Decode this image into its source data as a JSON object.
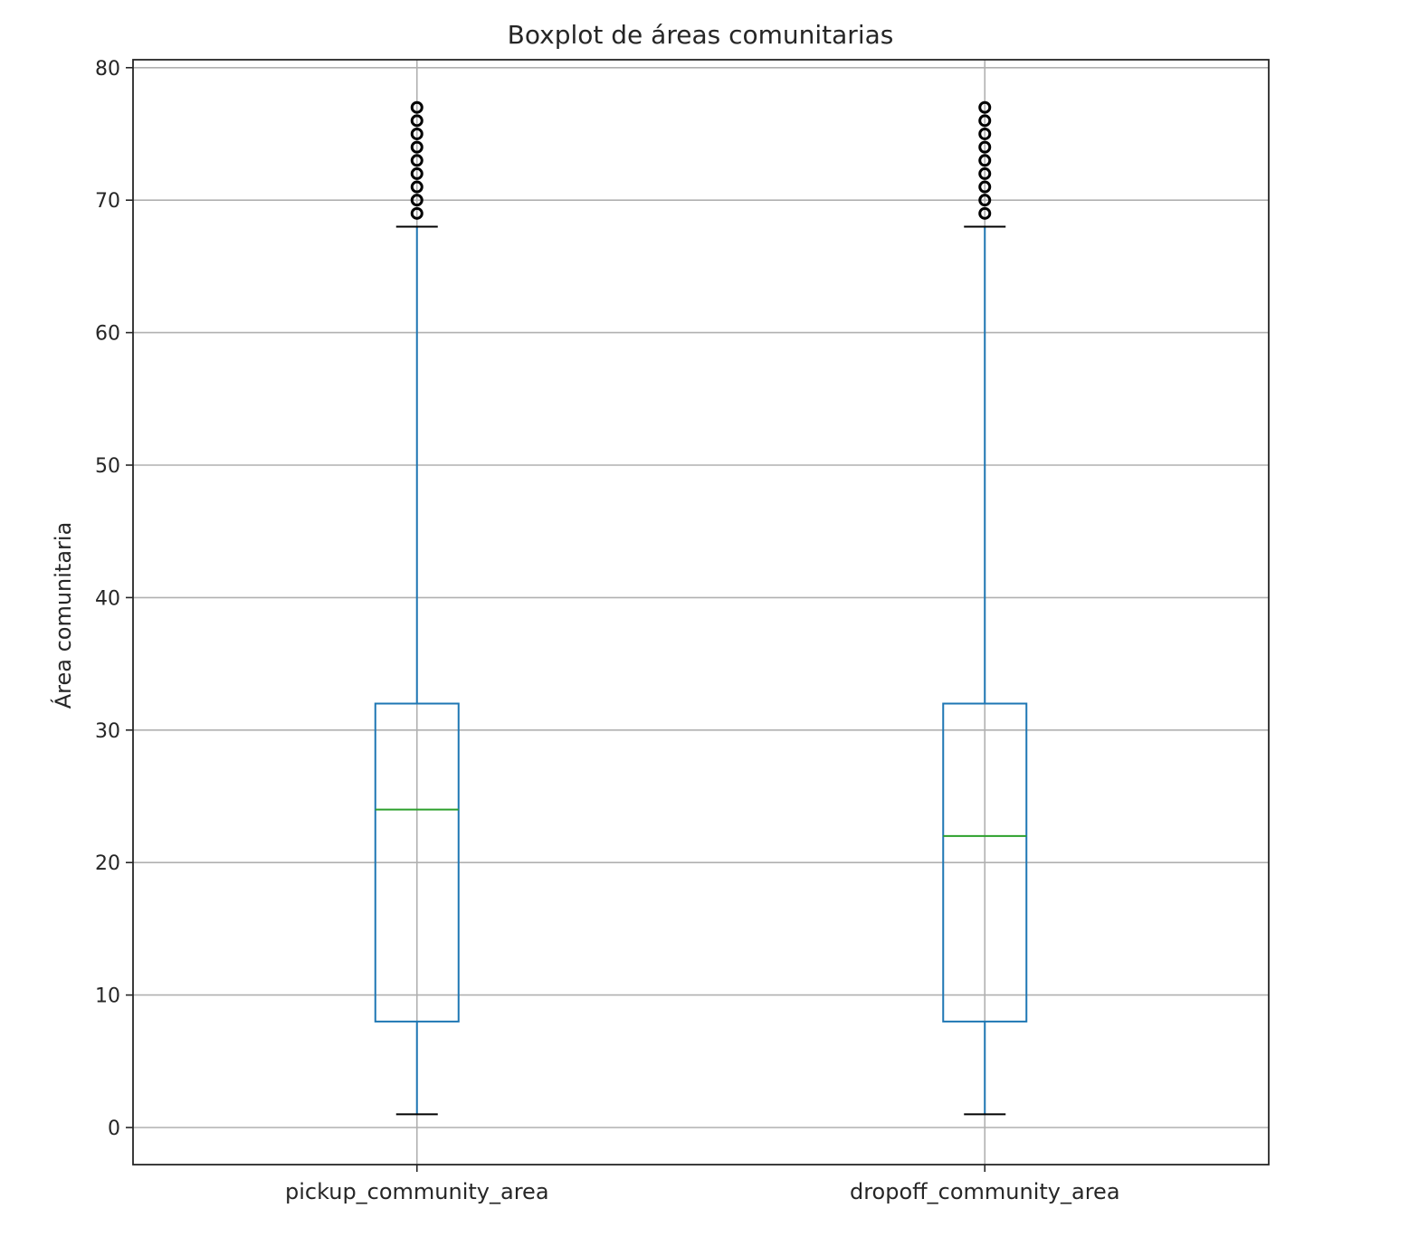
{
  "chart_data": {
    "type": "boxplot",
    "title": "Boxplot de áreas comunitarias",
    "ylabel": "Área comunitaria",
    "xlabel": "",
    "ylim": [
      -2.8,
      80.6
    ],
    "yticks": [
      0,
      10,
      20,
      30,
      40,
      50,
      60,
      70,
      80
    ],
    "grid": true,
    "categories": [
      "pickup_community_area",
      "dropoff_community_area"
    ],
    "boxes": [
      {
        "label": "pickup_community_area",
        "whisker_low": 1,
        "q1": 8,
        "median": 24,
        "q3": 32,
        "whisker_high": 68,
        "outliers": [
          69,
          70,
          71,
          72,
          73,
          74,
          75,
          76,
          77
        ]
      },
      {
        "label": "dropoff_community_area",
        "whisker_low": 1,
        "q1": 8,
        "median": 22,
        "q3": 32,
        "whisker_high": 68,
        "outliers": [
          69,
          70,
          71,
          72,
          73,
          74,
          75,
          76,
          77
        ]
      }
    ],
    "colors": {
      "box": "#1f77b4",
      "median": "#2ca02c",
      "outlier": "#000000",
      "grid": "#b0b0b0",
      "axes": "#262626"
    }
  }
}
